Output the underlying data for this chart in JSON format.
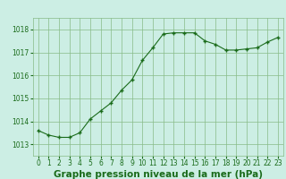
{
  "hours": [
    0,
    1,
    2,
    3,
    4,
    5,
    6,
    7,
    8,
    9,
    10,
    11,
    12,
    13,
    14,
    15,
    16,
    17,
    18,
    19,
    20,
    21,
    22,
    23
  ],
  "pressure": [
    1013.6,
    1013.4,
    1013.3,
    1013.3,
    1013.5,
    1014.1,
    1014.45,
    1014.8,
    1015.35,
    1015.8,
    1016.65,
    1017.2,
    1017.8,
    1017.85,
    1017.85,
    1017.85,
    1017.5,
    1017.35,
    1017.1,
    1017.1,
    1017.15,
    1017.2,
    1017.45,
    1017.65
  ],
  "line_color": "#1a6b1a",
  "marker_color": "#1a6b1a",
  "bg_color": "#cceee4",
  "grid_color": "#88bb88",
  "text_color": "#1a6b1a",
  "xlabel": "Graphe pression niveau de la mer (hPa)",
  "ylim_min": 1012.5,
  "ylim_max": 1018.5,
  "yticks": [
    1013,
    1014,
    1015,
    1016,
    1017,
    1018
  ],
  "xticks": [
    0,
    1,
    2,
    3,
    4,
    5,
    6,
    7,
    8,
    9,
    10,
    11,
    12,
    13,
    14,
    15,
    16,
    17,
    18,
    19,
    20,
    21,
    22,
    23
  ],
  "xlabel_fontsize": 7.5,
  "tick_fontsize": 5.5
}
